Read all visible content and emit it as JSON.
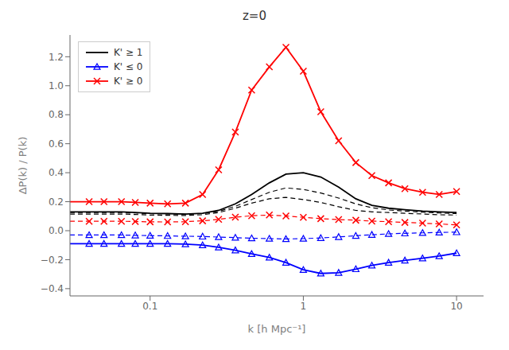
{
  "chart_data": {
    "type": "line",
    "title": "z=0",
    "x_label": "k [h Mpc⁻¹]",
    "y_label": "ΔP(k) / P(k)",
    "log": "x",
    "xlim": [
      0.03,
      15
    ],
    "ylim": [
      -0.45,
      1.35
    ],
    "xticks": [
      0.1,
      1,
      10
    ],
    "yticks": [
      {
        "value": -0.4,
        "label": "−0.4"
      },
      {
        "value": -0.2,
        "label": "−0.2"
      },
      {
        "value": 0,
        "label": "0.0"
      },
      0.2,
      0.4,
      0.6,
      0.8,
      {
        "value": 1,
        "label": "1.0"
      },
      1.2
    ],
    "grid": false,
    "legend": "upper left",
    "series": [
      {
        "name": "K' ≥ 1",
        "color": "black",
        "line_style": "solid",
        "x": [
          0.03,
          0.04,
          0.05,
          0.065,
          0.08,
          0.1,
          0.13,
          0.17,
          0.22,
          0.28,
          0.36,
          0.46,
          0.6,
          0.77,
          1.0,
          1.3,
          1.7,
          2.2,
          2.8,
          3.6,
          4.6,
          6.0,
          7.7,
          10.0
        ],
        "values": [
          0.13,
          0.13,
          0.13,
          0.13,
          0.125,
          0.12,
          0.118,
          0.115,
          0.12,
          0.14,
          0.185,
          0.25,
          0.33,
          0.39,
          0.4,
          0.37,
          0.3,
          0.22,
          0.175,
          0.155,
          0.145,
          0.135,
          0.13,
          0.125
        ]
      },
      {
        "color": "black",
        "line_style": "dashed",
        "x": [
          0.03,
          0.04,
          0.05,
          0.065,
          0.08,
          0.1,
          0.13,
          0.17,
          0.22,
          0.28,
          0.36,
          0.46,
          0.6,
          0.77,
          1.0,
          1.3,
          1.7,
          2.2,
          2.8,
          3.6,
          4.6,
          6.0,
          7.7,
          10.0
        ],
        "values": [
          0.115,
          0.115,
          0.115,
          0.115,
          0.112,
          0.108,
          0.106,
          0.105,
          0.11,
          0.125,
          0.155,
          0.19,
          0.22,
          0.23,
          0.215,
          0.195,
          0.165,
          0.14,
          0.13,
          0.125,
          0.12,
          0.115,
          0.11,
          0.108
        ]
      },
      {
        "color": "black",
        "line_style": "dashed",
        "x": [
          0.03,
          0.04,
          0.05,
          0.065,
          0.08,
          0.1,
          0.13,
          0.17,
          0.22,
          0.28,
          0.36,
          0.46,
          0.6,
          0.77,
          1.0,
          1.3,
          1.7,
          2.2,
          2.8,
          3.6,
          4.6,
          6.0,
          7.7,
          10.0
        ],
        "values": [
          0.125,
          0.125,
          0.125,
          0.125,
          0.122,
          0.118,
          0.116,
          0.114,
          0.118,
          0.133,
          0.168,
          0.215,
          0.265,
          0.295,
          0.285,
          0.26,
          0.225,
          0.185,
          0.158,
          0.143,
          0.135,
          0.128,
          0.122,
          0.118
        ]
      },
      {
        "name": "K' ≤ 0",
        "color": "blue",
        "line_style": "solid",
        "x": [
          0.03,
          0.04,
          0.05,
          0.065,
          0.08,
          0.1,
          0.13,
          0.17,
          0.22,
          0.28,
          0.36,
          0.46,
          0.6,
          0.77,
          1.0,
          1.3,
          1.7,
          2.2,
          2.8,
          3.6,
          4.6,
          6.0,
          7.7,
          10.0
        ],
        "values": [
          -0.09,
          -0.09,
          -0.09,
          -0.09,
          -0.09,
          -0.09,
          -0.09,
          -0.093,
          -0.1,
          -0.115,
          -0.135,
          -0.16,
          -0.185,
          -0.22,
          -0.27,
          -0.295,
          -0.29,
          -0.265,
          -0.24,
          -0.22,
          -0.205,
          -0.19,
          -0.175,
          -0.155
        ]
      },
      {
        "name": "K' ≤ 0",
        "color": "blue",
        "line_style": "none",
        "marker": "triangle",
        "x": [
          0.04,
          0.05,
          0.065,
          0.08,
          0.1,
          0.13,
          0.17,
          0.22,
          0.28,
          0.36,
          0.46,
          0.6,
          0.77,
          1.0,
          1.3,
          1.7,
          2.2,
          2.8,
          3.6,
          4.6,
          6.0,
          7.7,
          10.0
        ],
        "values": [
          -0.09,
          -0.09,
          -0.09,
          -0.09,
          -0.09,
          -0.09,
          -0.093,
          -0.1,
          -0.115,
          -0.135,
          -0.16,
          -0.185,
          -0.22,
          -0.27,
          -0.295,
          -0.29,
          -0.265,
          -0.24,
          -0.22,
          -0.205,
          -0.19,
          -0.175,
          -0.155
        ]
      },
      {
        "color": "blue",
        "line_style": "dashed",
        "x": [
          0.03,
          0.04,
          0.05,
          0.065,
          0.08,
          0.1,
          0.13,
          0.17,
          0.22,
          0.28,
          0.36,
          0.46,
          0.6,
          0.77,
          1.0,
          1.3,
          1.7,
          2.2,
          2.8,
          3.6,
          4.6,
          6.0,
          7.7,
          10.0
        ],
        "values": [
          -0.03,
          -0.03,
          -0.03,
          -0.03,
          -0.032,
          -0.034,
          -0.036,
          -0.038,
          -0.04,
          -0.044,
          -0.048,
          -0.052,
          -0.055,
          -0.057,
          -0.055,
          -0.05,
          -0.043,
          -0.035,
          -0.028,
          -0.022,
          -0.018,
          -0.015,
          -0.012,
          -0.01
        ]
      },
      {
        "color": "blue",
        "line_style": "none",
        "marker": "triangle",
        "x": [
          0.04,
          0.05,
          0.065,
          0.08,
          0.1,
          0.13,
          0.17,
          0.22,
          0.28,
          0.36,
          0.46,
          0.6,
          0.77,
          1.0,
          1.3,
          1.7,
          2.2,
          2.8,
          3.6,
          4.6,
          6.0,
          7.7,
          10.0
        ],
        "values": [
          -0.03,
          -0.03,
          -0.03,
          -0.032,
          -0.034,
          -0.036,
          -0.038,
          -0.04,
          -0.044,
          -0.048,
          -0.052,
          -0.055,
          -0.057,
          -0.055,
          -0.05,
          -0.043,
          -0.035,
          -0.028,
          -0.022,
          -0.018,
          -0.015,
          -0.012,
          -0.01
        ]
      },
      {
        "name": "K' ≥ 0",
        "color": "red",
        "line_style": "solid",
        "x": [
          0.03,
          0.04,
          0.05,
          0.065,
          0.08,
          0.1,
          0.13,
          0.17,
          0.22,
          0.28,
          0.36,
          0.46,
          0.6,
          0.77,
          1.0,
          1.3,
          1.7,
          2.2,
          2.8,
          3.6,
          4.6,
          6.0,
          7.7,
          10.0
        ],
        "values": [
          0.2,
          0.2,
          0.2,
          0.2,
          0.195,
          0.19,
          0.185,
          0.19,
          0.25,
          0.42,
          0.68,
          0.97,
          1.13,
          1.265,
          1.1,
          0.82,
          0.62,
          0.47,
          0.38,
          0.33,
          0.29,
          0.265,
          0.25,
          0.27
        ]
      },
      {
        "name": "K' ≥ 0",
        "color": "red",
        "line_style": "none",
        "marker": "x",
        "x": [
          0.04,
          0.05,
          0.065,
          0.08,
          0.1,
          0.13,
          0.17,
          0.22,
          0.28,
          0.36,
          0.46,
          0.6,
          0.77,
          1.0,
          1.3,
          1.7,
          2.2,
          2.8,
          3.6,
          4.6,
          6.0,
          7.7,
          10.0
        ],
        "values": [
          0.2,
          0.2,
          0.2,
          0.195,
          0.19,
          0.185,
          0.19,
          0.25,
          0.42,
          0.68,
          0.97,
          1.13,
          1.265,
          1.1,
          0.82,
          0.62,
          0.47,
          0.38,
          0.33,
          0.29,
          0.265,
          0.25,
          0.27
        ]
      },
      {
        "color": "red",
        "line_style": "dashed",
        "x": [
          0.03,
          0.04,
          0.05,
          0.065,
          0.08,
          0.1,
          0.13,
          0.17,
          0.22,
          0.28,
          0.36,
          0.46,
          0.6,
          0.77,
          1.0,
          1.3,
          1.7,
          2.2,
          2.8,
          3.6,
          4.6,
          6.0,
          7.7,
          10.0
        ],
        "values": [
          0.065,
          0.065,
          0.065,
          0.065,
          0.063,
          0.061,
          0.06,
          0.062,
          0.068,
          0.078,
          0.093,
          0.103,
          0.108,
          0.102,
          0.092,
          0.083,
          0.077,
          0.072,
          0.066,
          0.062,
          0.057,
          0.052,
          0.047,
          0.04
        ]
      },
      {
        "color": "red",
        "line_style": "none",
        "marker": "x",
        "x": [
          0.04,
          0.05,
          0.065,
          0.08,
          0.1,
          0.13,
          0.17,
          0.22,
          0.28,
          0.36,
          0.46,
          0.6,
          0.77,
          1.0,
          1.3,
          1.7,
          2.2,
          2.8,
          3.6,
          4.6,
          6.0,
          7.7,
          10.0
        ],
        "values": [
          0.065,
          0.065,
          0.065,
          0.063,
          0.061,
          0.06,
          0.062,
          0.068,
          0.078,
          0.093,
          0.103,
          0.108,
          0.102,
          0.092,
          0.083,
          0.077,
          0.072,
          0.066,
          0.062,
          0.057,
          0.052,
          0.047,
          0.04
        ]
      }
    ]
  }
}
